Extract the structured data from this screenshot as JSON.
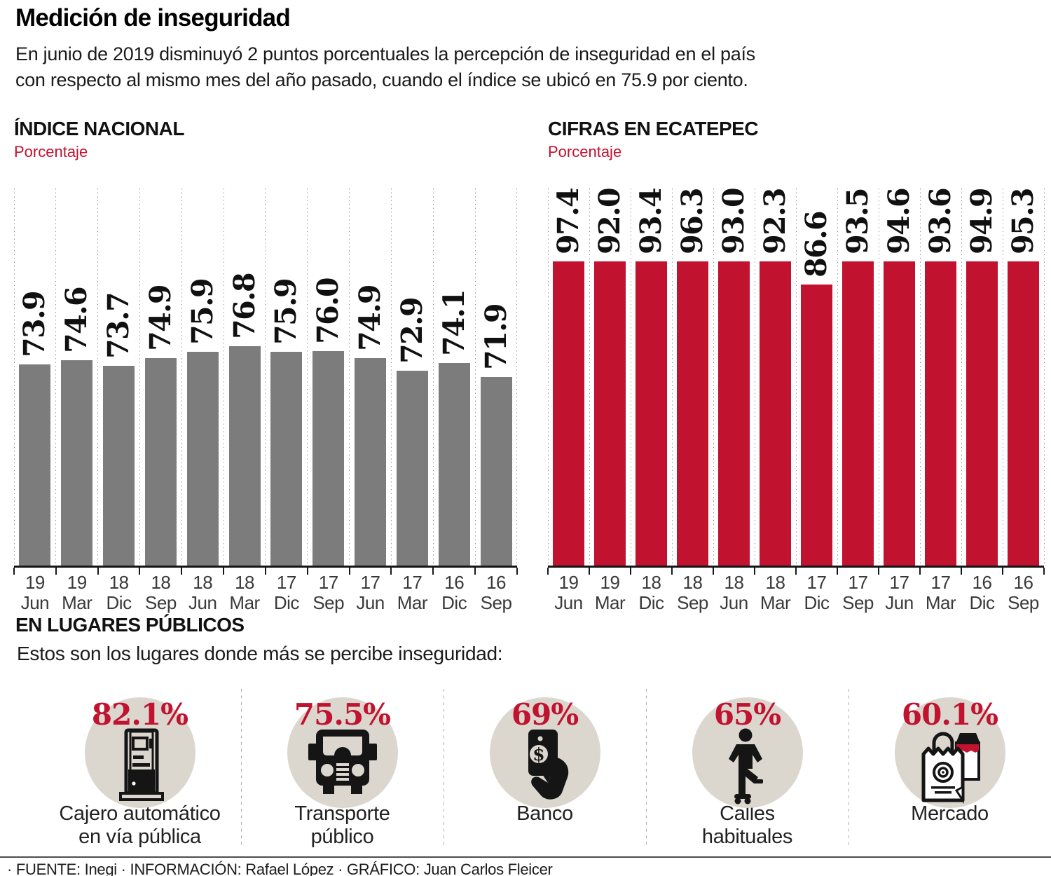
{
  "header": {
    "title": "Medición de inseguridad",
    "subtitle_lines": [
      "En junio de 2019 disminuyó 2 puntos porcentuales la percepción de inseguridad en el país",
      "con respecto al mismo mes del año pasado, cuando el índice se ubicó en 75.9 por ciento."
    ]
  },
  "colors": {
    "accent_red": "#c1122f",
    "bar_gray": "#7c7c7c",
    "circle_beige": "#dbd7cf"
  },
  "chart_data": [
    {
      "type": "bar",
      "title": "ÍNDICE NACIONAL",
      "unit_label": "Porcentaje",
      "categories": [
        "19 Jun",
        "19 Mar",
        "18 Dic",
        "18 Sep",
        "18 Jun",
        "18 Mar",
        "17 Dic",
        "17 Sep",
        "17 Jun",
        "17 Mar",
        "16 Dic",
        "16 Sep"
      ],
      "values": [
        73.9,
        74.6,
        73.7,
        74.9,
        75.9,
        76.8,
        75.9,
        76.0,
        74.9,
        72.9,
        74.1,
        71.9
      ],
      "value_labels": [
        "73.9",
        "74.6",
        "73.7",
        "74.9",
        "75.9",
        "76.8",
        "75.9",
        "76.0",
        "74.9",
        "72.9",
        "74.1",
        "71.9"
      ],
      "bar_color": "#7c7c7c",
      "scale": {
        "min": 42,
        "max": 100
      },
      "grid": "dotted-vertical",
      "legend": "none"
    },
    {
      "type": "bar",
      "title": "CIFRAS EN ECATEPEC",
      "unit_label": "Porcentaje",
      "categories": [
        "19 Jun",
        "19 Mar",
        "18 Dic",
        "18 Sep",
        "18 Jun",
        "18 Mar",
        "17 Dic",
        "17 Sep",
        "17 Jun",
        "17 Mar",
        "16 Dic",
        "16 Sep"
      ],
      "values": [
        97.4,
        92.0,
        93.4,
        96.3,
        93.0,
        92.3,
        86.6,
        93.5,
        94.6,
        93.6,
        94.9,
        95.3
      ],
      "value_labels": [
        "97.4",
        "92.0",
        "93.4",
        "96.3",
        "93.0",
        "92.3",
        "86.6",
        "93.5",
        "94.6",
        "93.6",
        "94.9",
        "95.3"
      ],
      "bar_color": "#c1122f",
      "scale": {
        "min": 42,
        "max": 100
      },
      "grid": "dotted-vertical",
      "legend": "none"
    },
    {
      "type": "pictogram",
      "title": "EN LUGARES PÚBLICOS",
      "subtitle": "Estos son los lugares donde más se percibe inseguridad:",
      "items": [
        {
          "value": "82.1%",
          "label_lines": [
            "Cajero automático",
            "en vía pública"
          ],
          "icon": "atm-icon"
        },
        {
          "value": "75.5%",
          "label_lines": [
            "Transporte",
            "público"
          ],
          "icon": "bus-icon"
        },
        {
          "value": "69%",
          "label_lines": [
            "Banco"
          ],
          "icon": "cash-hand-icon"
        },
        {
          "value": "65%",
          "label_lines": [
            "Calles",
            "habituales"
          ],
          "icon": "person-icon"
        },
        {
          "value": "60.1%",
          "label_lines": [
            "Mercado"
          ],
          "icon": "shopping-bag-icon"
        }
      ]
    }
  ],
  "footer": {
    "credits": "· FUENTE: Inegi · INFORMACIÓN: Rafael López · GRÁFICO: Juan Carlos Fleicer"
  }
}
